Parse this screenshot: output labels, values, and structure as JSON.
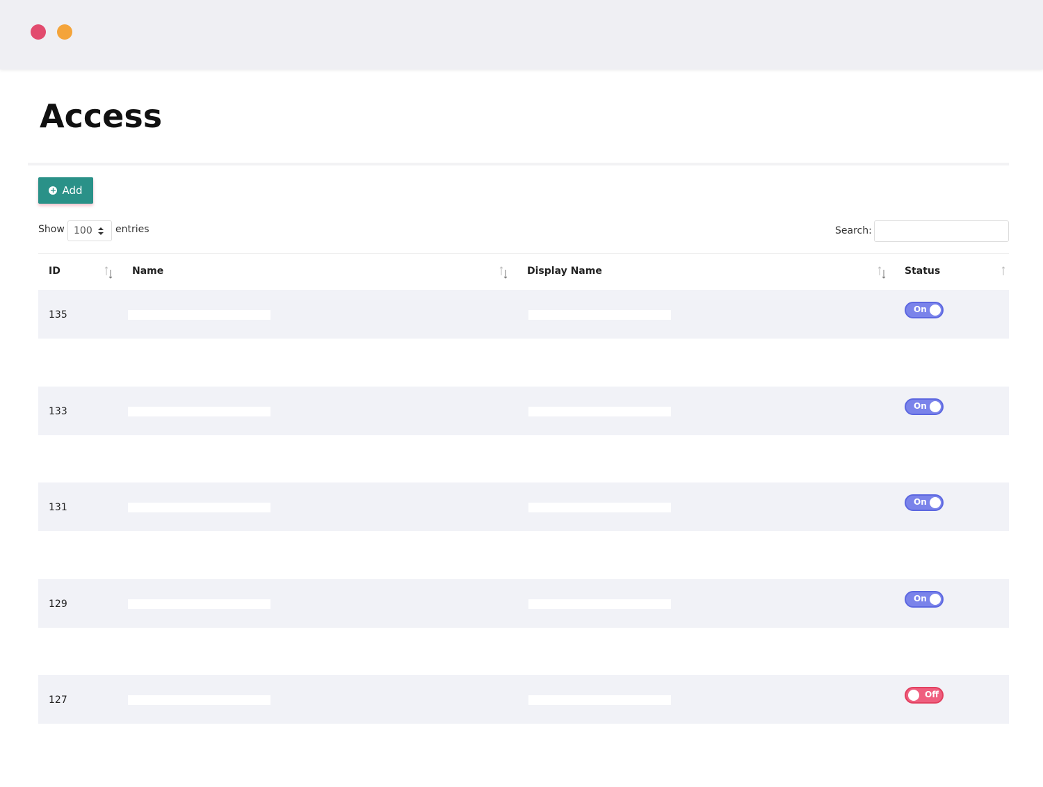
{
  "header": {
    "title": "Access"
  },
  "toolbar": {
    "add_button": "Add",
    "show_label": "Show",
    "page_size": "100",
    "entries_label": "entries",
    "search_label": "Search:"
  },
  "table": {
    "columns": [
      "ID",
      "Name",
      "Display Name",
      "Status"
    ],
    "rows": [
      {
        "id": 135,
        "status": "On"
      },
      {
        "id": 133,
        "status": "On"
      },
      {
        "id": 131,
        "status": "On"
      },
      {
        "id": 129,
        "status": "On"
      },
      {
        "id": 127,
        "status": "Off"
      }
    ]
  }
}
